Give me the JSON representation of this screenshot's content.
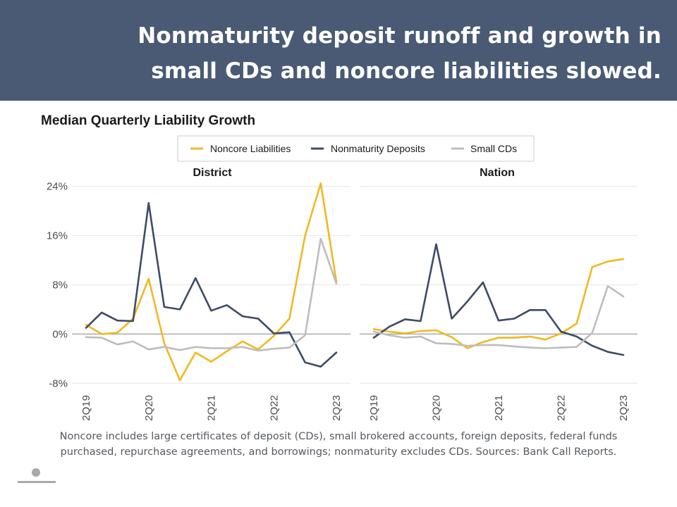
{
  "slide": {
    "title_line1": "Nonmaturity deposit runoff and growth in",
    "title_line2": "small CDs and noncore liabilities slowed.",
    "footnote_line1": "Noncore includes large certificates of deposit (CDs), small brokered accounts, foreign deposits, federal funds",
    "footnote_line2": "purchased, repurchase agreements, and borrowings; nonmaturity excludes CDs. Sources: Bank Call Reports.",
    "colors": {
      "header": "#4a5a75",
      "noncore": "#f0b921",
      "nonmaturity": "#3d4b66",
      "small_cds": "#bdbdbd"
    }
  },
  "chart_data": {
    "type": "line",
    "title": "Median Quarterly Liability Growth",
    "legend_position": "top",
    "y_tick_labels": [
      "24%",
      "16%",
      "8%",
      "0%",
      "-8%"
    ],
    "y_ticks": [
      24,
      16,
      8,
      0,
      -8
    ],
    "ylim": [
      -9,
      25
    ],
    "grid": true,
    "x": [
      "2Q19",
      "3Q19",
      "4Q19",
      "1Q20",
      "2Q20",
      "3Q20",
      "4Q20",
      "1Q21",
      "2Q21",
      "3Q21",
      "4Q21",
      "1Q22",
      "2Q22",
      "3Q22",
      "4Q22",
      "1Q23",
      "2Q23"
    ],
    "x_tick_labels": [
      "2Q19",
      "2Q20",
      "2Q21",
      "2Q22",
      "2Q23"
    ],
    "panels": [
      {
        "name": "District",
        "series": [
          {
            "name": "Noncore Liabilities",
            "values": [
              1.5,
              0.0,
              0.2,
              2.5,
              9.0,
              -1.5,
              -7.5,
              -3.0,
              -4.5,
              -2.8,
              -1.2,
              -2.5,
              -0.3,
              2.5,
              16.0,
              24.5,
              8.5
            ]
          },
          {
            "name": "Nonmaturity Deposits",
            "values": [
              1.0,
              3.5,
              2.2,
              2.1,
              21.3,
              4.4,
              4.0,
              9.1,
              3.8,
              4.7,
              2.9,
              2.5,
              0.1,
              0.3,
              -4.6,
              -5.3,
              -3.0
            ]
          },
          {
            "name": "Small CDs",
            "values": [
              -0.5,
              -0.6,
              -1.7,
              -1.2,
              -2.5,
              -2.1,
              -2.6,
              -2.1,
              -2.3,
              -2.3,
              -2.1,
              -2.7,
              -2.4,
              -2.2,
              -0.2,
              15.5,
              8.2
            ]
          }
        ]
      },
      {
        "name": "Nation",
        "series": [
          {
            "name": "Noncore Liabilities",
            "values": [
              0.8,
              0.4,
              0.1,
              0.5,
              0.6,
              -0.5,
              -2.3,
              -1.3,
              -0.6,
              -0.6,
              -0.4,
              -0.9,
              0.1,
              1.7,
              10.9,
              11.8,
              12.2
            ]
          },
          {
            "name": "Nonmaturity Deposits",
            "values": [
              -0.6,
              1.2,
              2.4,
              2.1,
              14.6,
              2.5,
              5.3,
              8.4,
              2.2,
              2.5,
              3.9,
              3.9,
              0.4,
              -0.4,
              -1.9,
              -2.9,
              -3.4
            ]
          },
          {
            "name": "Small CDs",
            "values": [
              0.4,
              -0.2,
              -0.6,
              -0.4,
              -1.5,
              -1.6,
              -1.9,
              -1.8,
              -1.8,
              -2.0,
              -2.2,
              -2.3,
              -2.2,
              -2.1,
              0.2,
              7.8,
              6.1
            ]
          }
        ]
      }
    ]
  }
}
